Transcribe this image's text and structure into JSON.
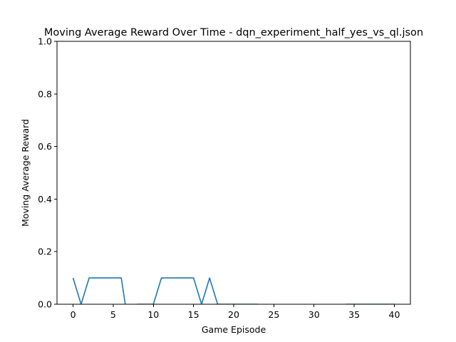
{
  "chart_data": {
    "type": "line",
    "title": "Moving Average Reward Over Time - dqn_experiment_half_yes_vs_ql.json",
    "xlabel": "Game Episode",
    "ylabel": "Moving Average Reward",
    "xlim": [
      -2,
      42
    ],
    "ylim": [
      0,
      1.0
    ],
    "xticks": [
      0,
      5,
      10,
      15,
      20,
      25,
      30,
      35,
      40
    ],
    "yticks": [
      0.0,
      0.2,
      0.4,
      0.6,
      0.8,
      1.0
    ],
    "xtick_labels": [
      "0",
      "5",
      "10",
      "15",
      "20",
      "25",
      "30",
      "35",
      "40"
    ],
    "ytick_labels": [
      "0.0",
      "0.2",
      "0.4",
      "0.6",
      "0.8",
      "1.0"
    ],
    "grid": false,
    "series": [
      {
        "name": "moving-average-reward",
        "color": "#1f77b4",
        "x": [
          0,
          1,
          2,
          3,
          4,
          5,
          6,
          7,
          8,
          9,
          10,
          11,
          12,
          13,
          14,
          15,
          16,
          17,
          18,
          19,
          20,
          21,
          22,
          23,
          24,
          25,
          26,
          27,
          28,
          29,
          30,
          31,
          32,
          33,
          34,
          35,
          36,
          37,
          38,
          39,
          40
        ],
        "y": [
          0.1,
          0.0,
          0.1,
          0.1,
          0.1,
          0.1,
          0.1,
          -0.1,
          0.0,
          0.0,
          0.0,
          0.1,
          0.1,
          0.1,
          0.1,
          0.1,
          0.0,
          0.1,
          0.0,
          0.0,
          0.0,
          0.0,
          0.0,
          0.0,
          -0.1,
          -0.1,
          -0.1,
          -0.1,
          -0.1,
          -0.1,
          -0.1,
          -0.1,
          -0.1,
          -0.1,
          0.0,
          0.0,
          0.0,
          0.0,
          0.0,
          0.0,
          0.0
        ]
      }
    ]
  }
}
